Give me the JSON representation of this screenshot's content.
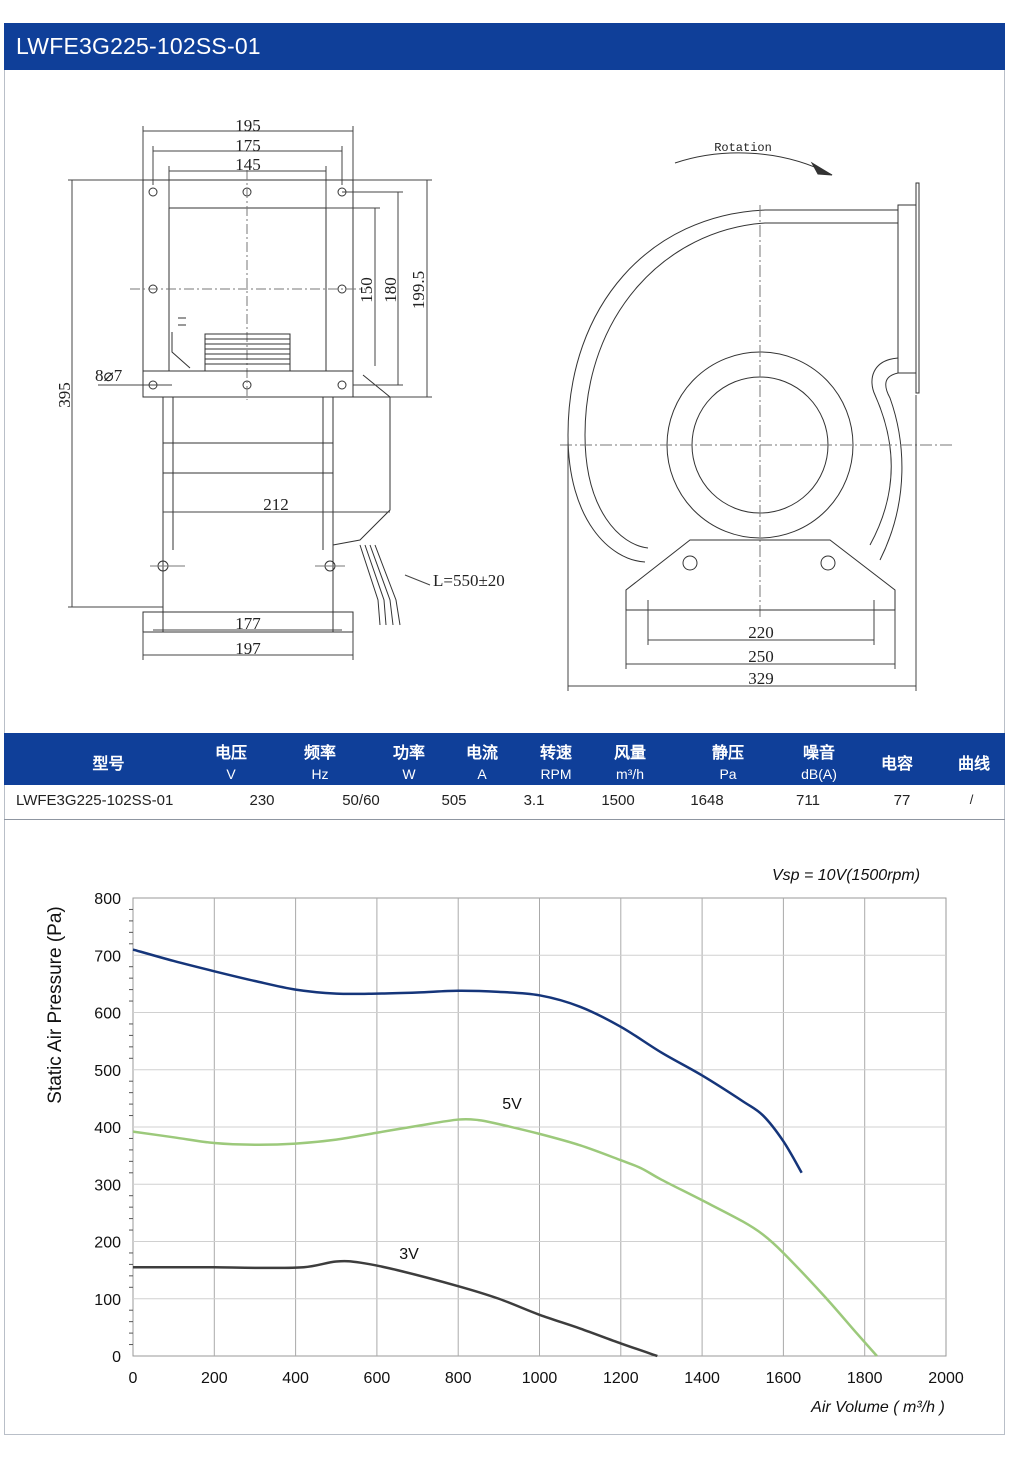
{
  "title": "LWFE3G225-102SS-01",
  "drawing": {
    "rotation_label": "Rotation",
    "dims": {
      "d195": "195",
      "d175": "175",
      "d145": "145",
      "d150": "150",
      "d180": "180",
      "d199_5": "199.5",
      "d395": "395",
      "holes": "8⌀7",
      "d212": "212",
      "cable": "L=550±20",
      "d177": "177",
      "d197": "197",
      "d220": "220",
      "d250": "250",
      "d329": "329"
    }
  },
  "spec_table": {
    "headers": [
      {
        "cn": "型号",
        "unit": ""
      },
      {
        "cn": "电压",
        "unit": "V"
      },
      {
        "cn": "频率",
        "unit": "Hz"
      },
      {
        "cn": "功率",
        "unit": "W"
      },
      {
        "cn": "电流",
        "unit": "A"
      },
      {
        "cn": "转速",
        "unit": "RPM"
      },
      {
        "cn": "风量",
        "unit": "m³/h"
      },
      {
        "cn": "静压",
        "unit": "Pa"
      },
      {
        "cn": "噪音",
        "unit": "dB(A)"
      },
      {
        "cn": "电容",
        "unit": ""
      },
      {
        "cn": "曲线",
        "unit": ""
      }
    ],
    "row": [
      "LWFE3G225-102SS-01",
      "230",
      "50/60",
      "505",
      "3.1",
      "1500",
      "1648",
      "711",
      "77",
      "/"
    ]
  },
  "chart_data": {
    "type": "line",
    "annotation": "Vsp = 10V(1500rpm)",
    "xlabel": "Air Volume ( m³/h )",
    "ylabel": "Static Air Pressure  (Pa)",
    "xlim": [
      0,
      2000
    ],
    "ylim": [
      0,
      800
    ],
    "xticks": [
      0,
      200,
      400,
      600,
      800,
      1000,
      1200,
      1400,
      1600,
      1800,
      2000
    ],
    "yticks": [
      0,
      100,
      200,
      300,
      400,
      500,
      600,
      700,
      800
    ],
    "grid": true,
    "series": [
      {
        "label": "",
        "color": "#15357a",
        "points": [
          [
            0,
            710
          ],
          [
            100,
            690
          ],
          [
            200,
            672
          ],
          [
            300,
            655
          ],
          [
            400,
            640
          ],
          [
            500,
            633
          ],
          [
            600,
            633
          ],
          [
            700,
            635
          ],
          [
            800,
            638
          ],
          [
            900,
            636
          ],
          [
            1000,
            630
          ],
          [
            1100,
            610
          ],
          [
            1200,
            575
          ],
          [
            1300,
            530
          ],
          [
            1400,
            490
          ],
          [
            1500,
            445
          ],
          [
            1550,
            420
          ],
          [
            1600,
            375
          ],
          [
            1645,
            320
          ]
        ]
      },
      {
        "label": "5V",
        "color": "#9cc97b",
        "points": [
          [
            0,
            392
          ],
          [
            100,
            382
          ],
          [
            200,
            372
          ],
          [
            300,
            369
          ],
          [
            400,
            371
          ],
          [
            500,
            378
          ],
          [
            600,
            390
          ],
          [
            700,
            402
          ],
          [
            800,
            413
          ],
          [
            850,
            412
          ],
          [
            900,
            405
          ],
          [
            1000,
            388
          ],
          [
            1100,
            368
          ],
          [
            1200,
            342
          ],
          [
            1250,
            328
          ],
          [
            1300,
            308
          ],
          [
            1400,
            272
          ],
          [
            1500,
            235
          ],
          [
            1550,
            212
          ],
          [
            1600,
            180
          ],
          [
            1700,
            105
          ],
          [
            1780,
            40
          ],
          [
            1830,
            0
          ]
        ]
      },
      {
        "label": "3V",
        "color": "#3d3d3d",
        "points": [
          [
            0,
            155
          ],
          [
            100,
            155
          ],
          [
            200,
            155
          ],
          [
            300,
            154
          ],
          [
            420,
            155
          ],
          [
            500,
            165
          ],
          [
            560,
            163
          ],
          [
            650,
            150
          ],
          [
            800,
            122
          ],
          [
            900,
            100
          ],
          [
            1000,
            72
          ],
          [
            1100,
            48
          ],
          [
            1200,
            22
          ],
          [
            1290,
            0
          ]
        ]
      }
    ]
  }
}
